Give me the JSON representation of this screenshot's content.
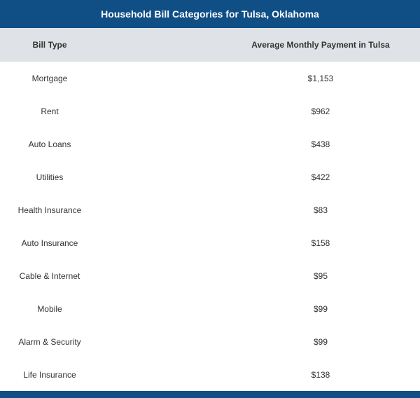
{
  "chart_data": {
    "type": "table",
    "title": "Household Bill Categories for Tulsa, Oklahoma",
    "columns": [
      "Bill Type",
      "Average Monthly Payment in Tulsa"
    ],
    "rows": [
      [
        "Mortgage",
        "$1,153"
      ],
      [
        "Rent",
        "$962"
      ],
      [
        "Auto Loans",
        "$438"
      ],
      [
        "Utilities",
        "$422"
      ],
      [
        "Health Insurance",
        "$83"
      ],
      [
        "Auto Insurance",
        "$158"
      ],
      [
        "Cable & Internet",
        "$95"
      ],
      [
        "Mobile",
        "$99"
      ],
      [
        "Alarm & Security",
        "$99"
      ],
      [
        "Life Insurance",
        "$138"
      ]
    ]
  },
  "colors": {
    "title_bar": "#104e86",
    "header_row": "#dfe3e7",
    "text": "#333333"
  }
}
